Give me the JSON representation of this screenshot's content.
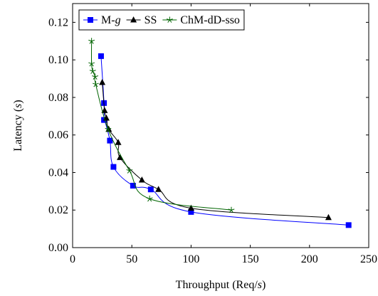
{
  "chart_data": {
    "type": "line",
    "xlabel": {
      "prefix": "Throughput (Req/",
      "unit": "s",
      "suffix": ")"
    },
    "ylabel": {
      "prefix": "Latency (",
      "unit": "s",
      "suffix": ")"
    },
    "xlim": [
      0,
      250
    ],
    "ylim": [
      0,
      0.13
    ],
    "xticks": [
      0,
      50,
      100,
      150,
      200,
      250
    ],
    "xtick_labels": [
      "0",
      "50",
      "100",
      "150",
      "200",
      "250"
    ],
    "yticks": [
      0,
      0.02,
      0.04,
      0.06,
      0.08,
      0.1,
      0.12
    ],
    "ytick_labels": [
      "0.00",
      "0.02",
      "0.04",
      "0.06",
      "0.08",
      "0.10",
      "0.12"
    ],
    "grid": false,
    "legend_position": "top-left",
    "series": [
      {
        "name": "M-g",
        "name_parts": {
          "base": "M-",
          "italic": "g"
        },
        "color": "#0000ff",
        "marker": "square",
        "x": [
          24,
          26.5,
          26.5,
          27,
          31.5,
          34.5,
          51,
          66,
          100,
          233
        ],
        "y": [
          0.102,
          0.077,
          0.068,
          0.068,
          0.057,
          0.043,
          0.033,
          0.031,
          0.019,
          0.012
        ]
      },
      {
        "name": "SS",
        "color": "#000000",
        "marker": "triangle",
        "x": [
          25,
          27,
          28.5,
          30.5,
          38.5,
          40,
          58.5,
          72.5,
          100,
          216
        ],
        "y": [
          0.088,
          0.073,
          0.069,
          0.063,
          0.056,
          0.048,
          0.036,
          0.031,
          0.021,
          0.016
        ]
      },
      {
        "name": "ChM-dD-sso",
        "color": "#006400",
        "marker": "star",
        "x": [
          16,
          16,
          17,
          19,
          19.5,
          30,
          48,
          65,
          134
        ],
        "y": [
          0.11,
          0.098,
          0.094,
          0.091,
          0.087,
          0.063,
          0.041,
          0.026,
          0.02
        ]
      }
    ]
  }
}
